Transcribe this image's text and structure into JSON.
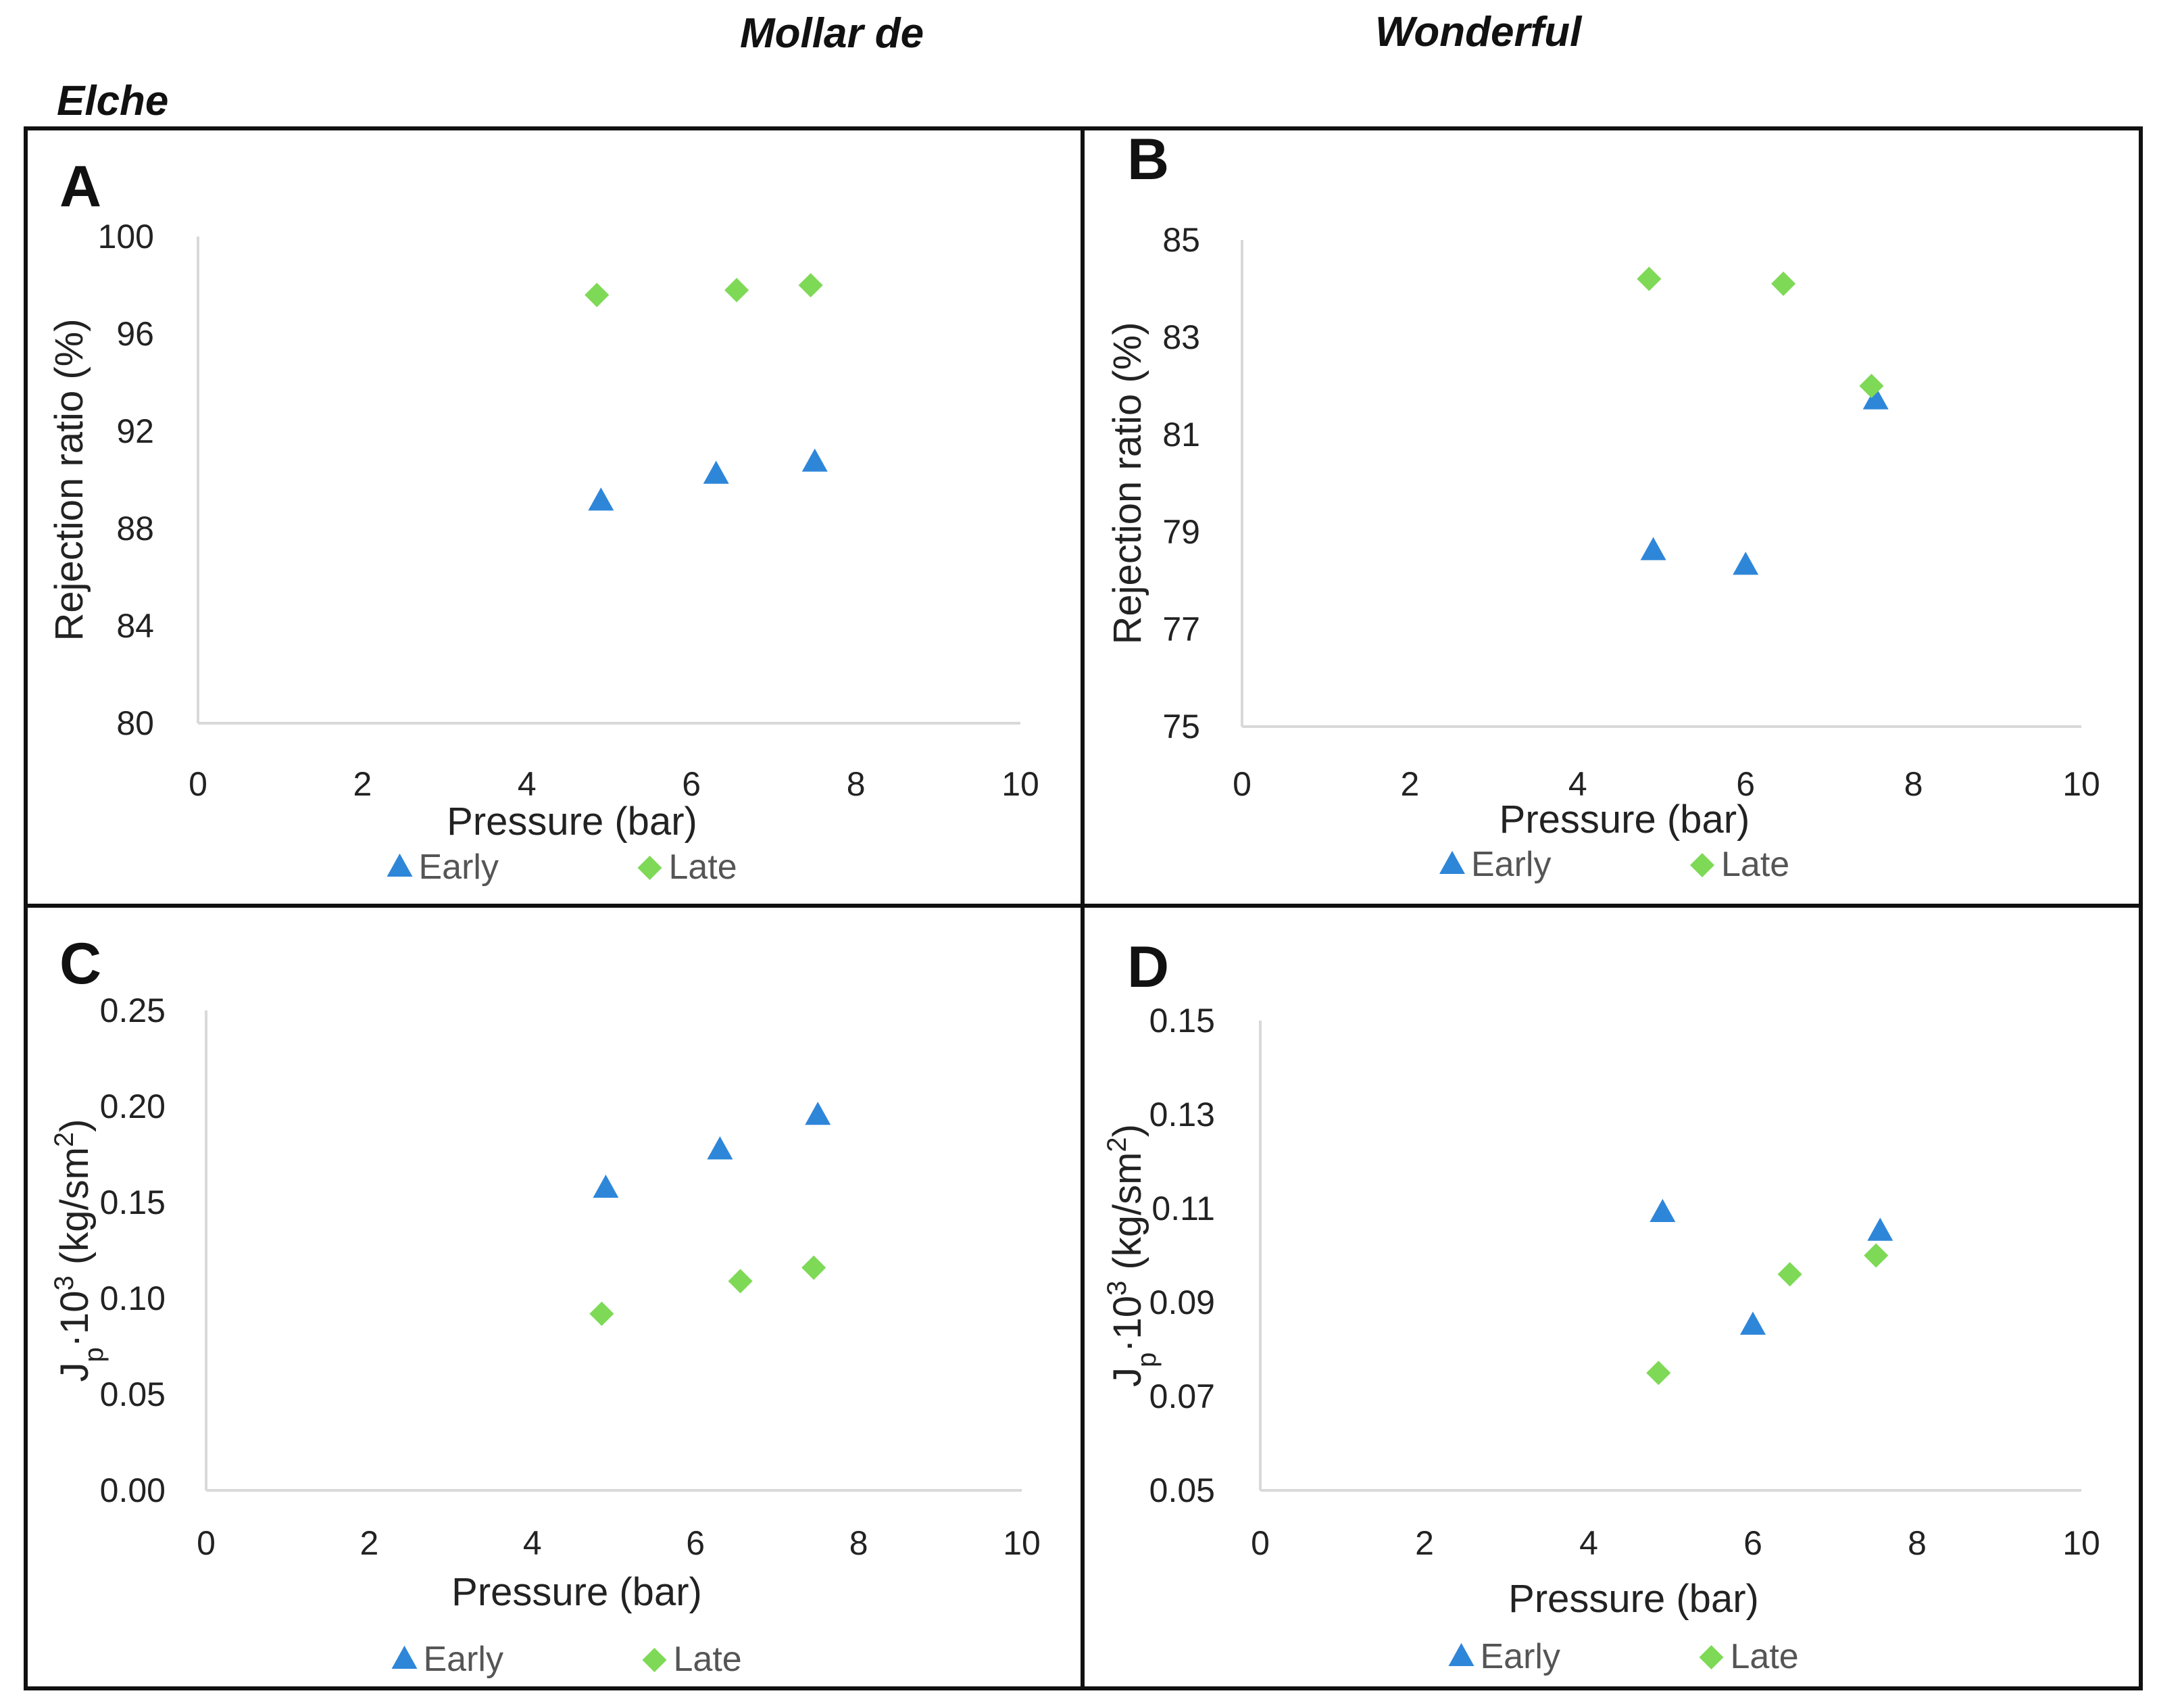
{
  "headers": {
    "left_title_a": "Mollar de",
    "left_title_b": "Elche",
    "right_title": "Wonderful"
  },
  "colors": {
    "early": "#2E86D9",
    "late": "#7ED957",
    "axis": "#d9d9d9",
    "frame": "#111111"
  },
  "legend": {
    "early": "Early",
    "late": "Late"
  },
  "chart_data": [
    {
      "panel": "A",
      "type": "scatter",
      "xlabel": "Pressure (bar)",
      "ylabel": "Rejection ratio (%)",
      "xlim": [
        0,
        10
      ],
      "ylim": [
        80,
        100
      ],
      "xticks": [
        "0",
        "2",
        "4",
        "6",
        "8",
        "10"
      ],
      "yticks": [
        "80",
        "84",
        "88",
        "92",
        "96",
        "100"
      ],
      "series": [
        {
          "name": "Early",
          "marker": "triangle",
          "x": [
            4.9,
            6.3,
            7.5
          ],
          "y": [
            89.1,
            90.2,
            90.7
          ]
        },
        {
          "name": "Late",
          "marker": "diamond",
          "x": [
            4.85,
            6.55,
            7.45
          ],
          "y": [
            97.6,
            97.8,
            98.0
          ]
        }
      ]
    },
    {
      "panel": "B",
      "type": "scatter",
      "xlabel": "Pressure (bar)",
      "ylabel": "Rejection ratio (%)",
      "xlim": [
        0,
        10
      ],
      "ylim": [
        75,
        85
      ],
      "xticks": [
        "0",
        "2",
        "4",
        "6",
        "8",
        "10"
      ],
      "yticks": [
        "75",
        "77",
        "79",
        "81",
        "83",
        "85"
      ],
      "series": [
        {
          "name": "Early",
          "marker": "triangle",
          "x": [
            4.9,
            6.0,
            7.55
          ],
          "y": [
            78.6,
            78.3,
            81.7
          ]
        },
        {
          "name": "Late",
          "marker": "diamond",
          "x": [
            4.85,
            6.45,
            7.5
          ],
          "y": [
            84.2,
            84.1,
            82.0
          ]
        }
      ]
    },
    {
      "panel": "C",
      "type": "scatter",
      "xlabel": "Pressure (bar)",
      "ylabel_parts": [
        "J",
        "p",
        "·10",
        "3",
        " (kg/sm",
        "2",
        ")"
      ],
      "xlim": [
        0,
        10
      ],
      "ylim": [
        0.0,
        0.25
      ],
      "xticks": [
        "0",
        "2",
        "4",
        "6",
        "8",
        "10"
      ],
      "yticks": [
        "0.00",
        "0.05",
        "0.10",
        "0.15",
        "0.20",
        "0.25"
      ],
      "series": [
        {
          "name": "Early",
          "marker": "triangle",
          "x": [
            4.9,
            6.3,
            7.5
          ],
          "y": [
            0.157,
            0.177,
            0.195
          ]
        },
        {
          "name": "Late",
          "marker": "diamond",
          "x": [
            4.85,
            6.55,
            7.45
          ],
          "y": [
            0.092,
            0.109,
            0.116
          ]
        }
      ]
    },
    {
      "panel": "D",
      "type": "scatter",
      "xlabel": "Pressure (bar)",
      "ylabel_parts": [
        "J",
        "p",
        "·10",
        "3",
        " (kg/sm",
        "2",
        ")"
      ],
      "xlim": [
        0,
        10
      ],
      "ylim": [
        0.05,
        0.15
      ],
      "xticks": [
        "0",
        "2",
        "4",
        "6",
        "8",
        "10"
      ],
      "yticks": [
        "0.05",
        "0.07",
        "0.09",
        "0.11",
        "0.13",
        "0.15"
      ],
      "series": [
        {
          "name": "Early",
          "marker": "triangle",
          "x": [
            4.9,
            6.0,
            7.55
          ],
          "y": [
            0.109,
            0.085,
            0.105
          ]
        },
        {
          "name": "Late",
          "marker": "diamond",
          "x": [
            4.85,
            6.45,
            7.5
          ],
          "y": [
            0.075,
            0.096,
            0.1
          ]
        }
      ]
    }
  ]
}
